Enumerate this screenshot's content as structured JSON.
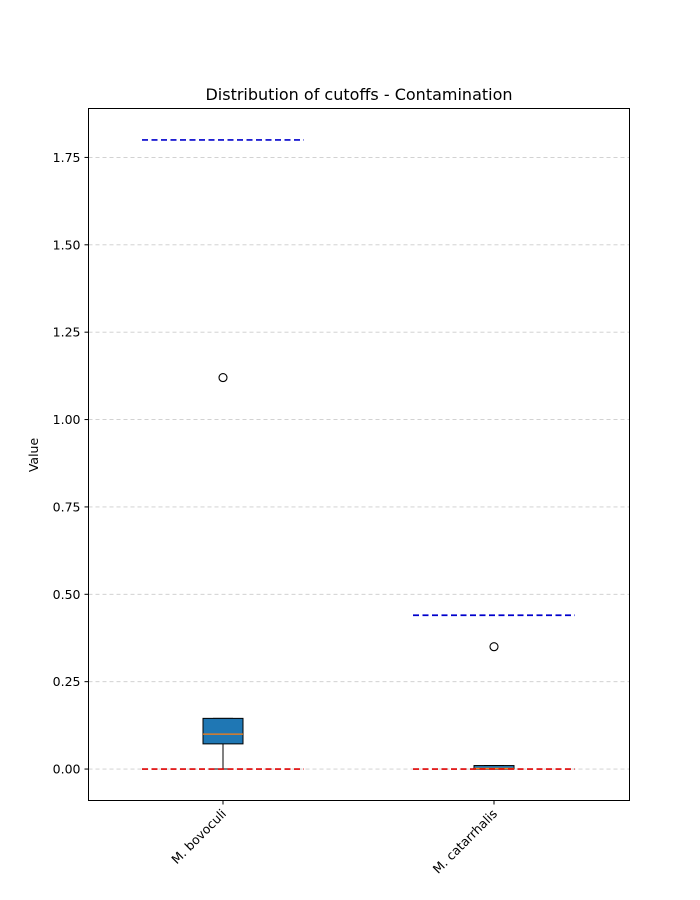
{
  "chart_data": {
    "type": "box",
    "title": "Distribution of cutoffs - Contamination",
    "xlabel": "",
    "ylabel": "Value",
    "ylim": [
      -0.09,
      1.89
    ],
    "yticks": [
      "0.00",
      "0.25",
      "0.50",
      "0.75",
      "1.00",
      "1.25",
      "1.50",
      "1.75"
    ],
    "grid": "y-dashed",
    "categories": [
      "M. bovoculi",
      "M. catarrhalis"
    ],
    "boxes": [
      {
        "name": "M. bovoculi",
        "whisker_low": 0.0,
        "q1": 0.072,
        "median": 0.1,
        "q3": 0.145,
        "whisker_high": 0.145,
        "outliers": [
          1.12
        ],
        "upper_cutoff": 1.8,
        "lower_cutoff": 0.0
      },
      {
        "name": "M. catarrhalis",
        "whisker_low": 0.0,
        "q1": 0.0,
        "median": 0.002,
        "q3": 0.01,
        "whisker_high": 0.01,
        "outliers": [
          0.35
        ],
        "upper_cutoff": 0.44,
        "lower_cutoff": 0.0
      }
    ],
    "colors": {
      "box_fill": "#1f77b4",
      "median": "#ff7f0e",
      "upper_cutoff_line": "#0000cc",
      "lower_cutoff_line": "#dd0000",
      "grid": "#cccccc"
    }
  }
}
